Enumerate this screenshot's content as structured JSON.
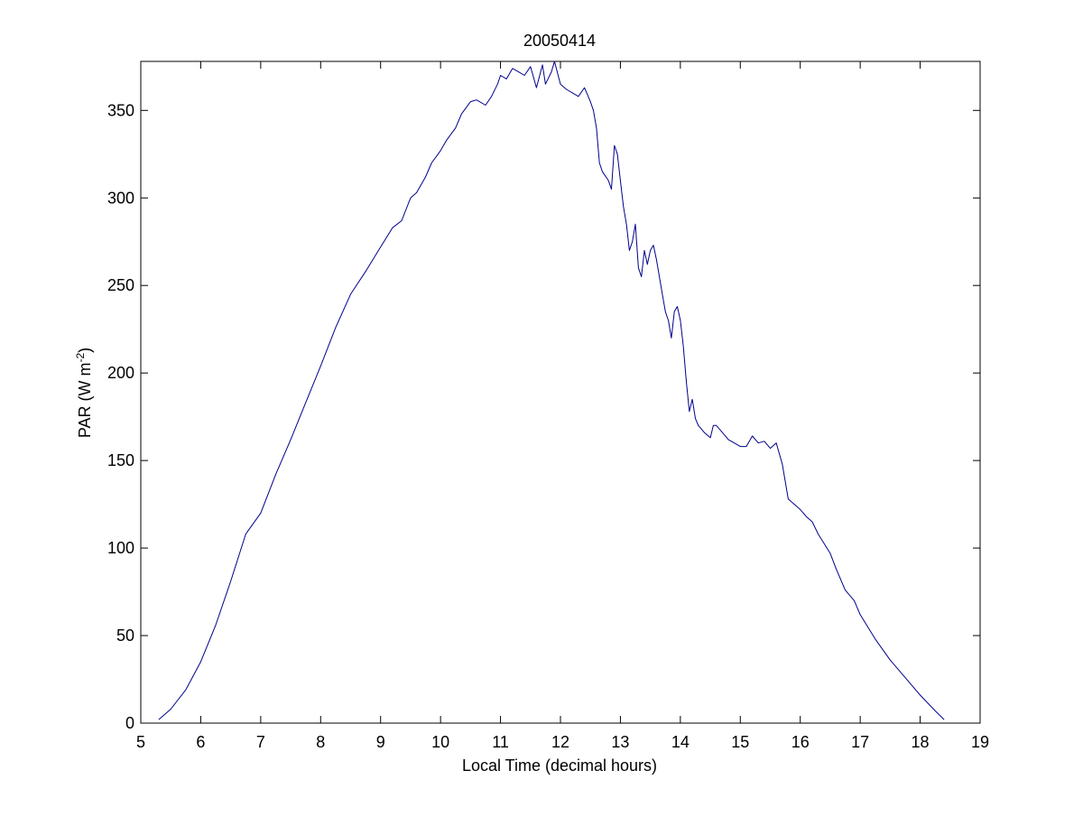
{
  "chart_data": {
    "type": "line",
    "title": "20050414",
    "xlabel": "Local Time (decimal hours)",
    "ylabel": {
      "prefix": "PAR (W m",
      "superscript": "-2",
      "suffix": ")"
    },
    "xlim": [
      5,
      19
    ],
    "ylim": [
      0,
      378
    ],
    "xticks": [
      5,
      6,
      7,
      8,
      9,
      10,
      11,
      12,
      13,
      14,
      15,
      16,
      17,
      18,
      19
    ],
    "yticks": [
      0,
      50,
      100,
      150,
      200,
      250,
      300,
      350
    ],
    "grid": false,
    "series": [
      {
        "color": "#00008b",
        "x": [
          5.3,
          5.5,
          5.75,
          6.0,
          6.25,
          6.5,
          6.75,
          7.0,
          7.25,
          7.5,
          7.75,
          8.0,
          8.25,
          8.5,
          8.75,
          9.0,
          9.2,
          9.35,
          9.5,
          9.6,
          9.75,
          9.85,
          10.0,
          10.1,
          10.25,
          10.35,
          10.5,
          10.6,
          10.75,
          10.85,
          10.95,
          11.0,
          11.1,
          11.2,
          11.3,
          11.4,
          11.5,
          11.6,
          11.7,
          11.75,
          11.85,
          11.9,
          12.0,
          12.1,
          12.2,
          12.3,
          12.4,
          12.5,
          12.55,
          12.6,
          12.65,
          12.7,
          12.8,
          12.85,
          12.9,
          12.95,
          13.0,
          13.05,
          13.1,
          13.15,
          13.2,
          13.25,
          13.3,
          13.35,
          13.4,
          13.45,
          13.5,
          13.55,
          13.6,
          13.65,
          13.7,
          13.75,
          13.8,
          13.85,
          13.9,
          13.95,
          14.0,
          14.05,
          14.1,
          14.15,
          14.2,
          14.25,
          14.3,
          14.4,
          14.5,
          14.55,
          14.6,
          14.7,
          14.8,
          14.9,
          15.0,
          15.1,
          15.2,
          15.3,
          15.4,
          15.5,
          15.6,
          15.7,
          15.8,
          15.9,
          16.0,
          16.1,
          16.2,
          16.3,
          16.5,
          16.6,
          16.75,
          16.9,
          17.0,
          17.25,
          17.5,
          17.75,
          18.0,
          18.25,
          18.4
        ],
        "y": [
          2,
          8,
          19,
          35,
          56,
          81,
          108,
          120,
          142,
          162,
          183,
          204,
          226,
          245,
          258,
          272,
          283,
          287,
          300,
          303,
          312,
          320,
          327,
          333,
          340,
          348,
          355,
          356,
          353,
          358,
          365,
          370,
          368,
          374,
          372,
          370,
          375,
          363,
          376,
          365,
          372,
          378,
          365,
          362,
          360,
          358,
          363,
          355,
          350,
          340,
          320,
          315,
          310,
          305,
          330,
          325,
          310,
          295,
          285,
          270,
          275,
          285,
          260,
          255,
          270,
          262,
          270,
          273,
          265,
          255,
          245,
          235,
          230,
          220,
          235,
          238,
          230,
          215,
          195,
          178,
          185,
          174,
          170,
          166,
          163,
          170,
          170,
          166,
          162,
          160,
          158,
          158,
          164,
          160,
          161,
          157,
          160,
          148,
          128,
          125,
          122,
          118,
          115,
          108,
          97,
          88,
          76,
          70,
          62,
          48,
          36,
          26,
          16,
          7,
          2
        ]
      }
    ]
  }
}
